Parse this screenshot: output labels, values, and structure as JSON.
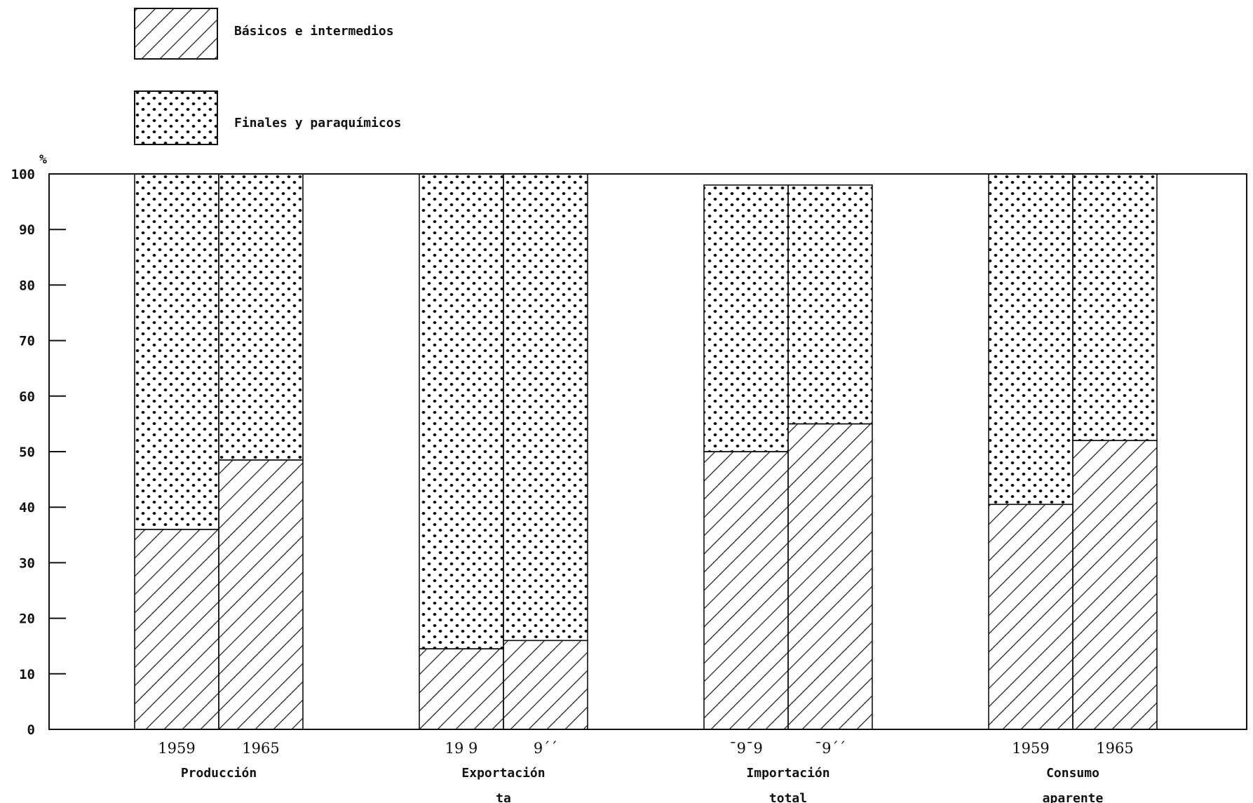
{
  "chart_data": {
    "type": "bar",
    "stacked": true,
    "percent_stacked": true,
    "ylabel": "%",
    "ylim": [
      0,
      100
    ],
    "yticks": [
      0,
      10,
      20,
      30,
      40,
      50,
      60,
      70,
      80,
      90,
      100
    ],
    "legend": {
      "placement": "top-left",
      "entries": [
        {
          "name": "Básicos e intermedios",
          "pattern": "diagonal-hatch"
        },
        {
          "name": "Finales y paraquímicos",
          "pattern": "dots"
        }
      ]
    },
    "groups": [
      {
        "label_lines": [
          "Producción"
        ],
        "years": [
          "1959",
          "1965"
        ]
      },
      {
        "label_lines": [
          "Exportación",
          "ta"
        ],
        "years": [
          "19 9",
          "9´´"
        ]
      },
      {
        "label_lines": [
          "Importación",
          "total"
        ],
        "years": [
          "¯9¯9",
          "¯9´´"
        ]
      },
      {
        "label_lines": [
          "Consumo",
          "aparente"
        ],
        "years": [
          "1959",
          "1965"
        ]
      }
    ],
    "series": [
      {
        "name": "Básicos e intermedios",
        "values": [
          36,
          48.5,
          14.5,
          16,
          50,
          55,
          40.5,
          52
        ]
      },
      {
        "name": "Finales y paraquímicos",
        "values": [
          64,
          51.5,
          85.5,
          84,
          48,
          43,
          59.5,
          48
        ]
      }
    ],
    "colors": {
      "ink": "#111111",
      "background": "#ffffff"
    }
  }
}
